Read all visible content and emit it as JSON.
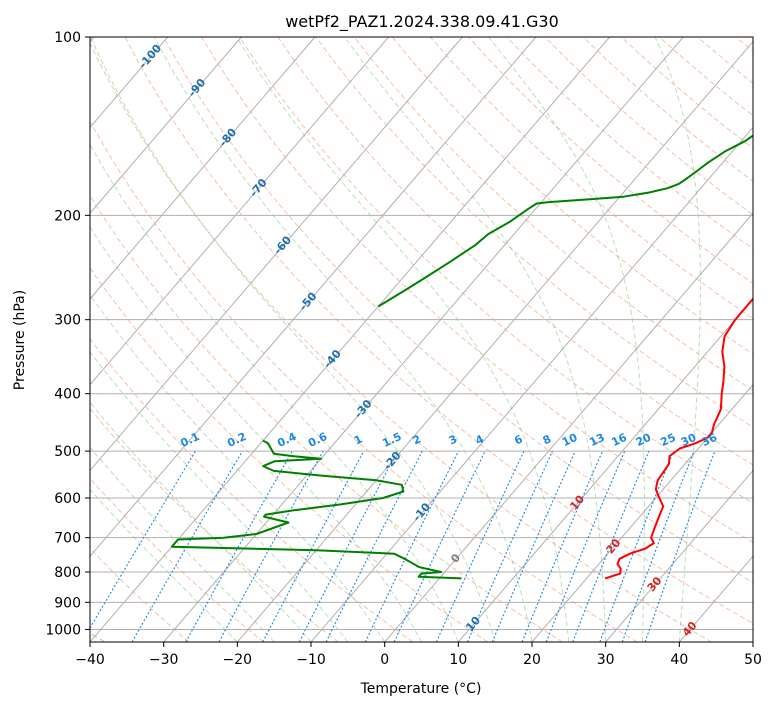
{
  "chart_data": {
    "type": "line",
    "title": "wetPf2_PAZ1.2024.338.09.41.G30",
    "xlabel": "Temperature (°C)",
    "ylabel": "Pressure (hPa)",
    "xlim": [
      -40,
      50
    ],
    "ylim": [
      1050,
      100
    ],
    "y_scale": "log",
    "x_ticks": [
      -40,
      -30,
      -20,
      -10,
      0,
      10,
      20,
      30,
      40,
      50
    ],
    "x_tick_labels": [
      "−40",
      "−30",
      "−20",
      "−10",
      "0",
      "10",
      "20",
      "30",
      "40",
      "50"
    ],
    "y_ticks": [
      100,
      200,
      300,
      400,
      500,
      600,
      700,
      800,
      900,
      1000
    ],
    "y_tick_labels": [
      "100",
      "200",
      "300",
      "400",
      "500",
      "600",
      "700",
      "800",
      "900",
      "1000"
    ],
    "grid": true,
    "colors": {
      "temperature": "#ff0000",
      "dewpoint": "#008000",
      "mixing_ratio": "#1e88e5",
      "isotherm_label": "#1f6fae",
      "theta_e_label": "#d62728"
    },
    "series": [
      {
        "key": "temperature",
        "points": [
          [
            22.5,
            820
          ],
          [
            24.0,
            805
          ],
          [
            23.5,
            790
          ],
          [
            22.5,
            775
          ],
          [
            22.2,
            760
          ],
          [
            23.0,
            745
          ],
          [
            24.5,
            730
          ],
          [
            25.0,
            715
          ],
          [
            24.0,
            700
          ],
          [
            23.5,
            680
          ],
          [
            23.0,
            660
          ],
          [
            22.5,
            640
          ],
          [
            22.0,
            620
          ],
          [
            20.5,
            600
          ],
          [
            19.0,
            580
          ],
          [
            18.2,
            560
          ],
          [
            18.0,
            540
          ],
          [
            17.8,
            525
          ],
          [
            17.0,
            510
          ],
          [
            17.5,
            495
          ],
          [
            19.0,
            485
          ],
          [
            20.0,
            475
          ],
          [
            20.0,
            465
          ],
          [
            19.3,
            450
          ],
          [
            19.0,
            440
          ],
          [
            18.5,
            425
          ],
          [
            17.5,
            410
          ],
          [
            16.8,
            400
          ],
          [
            15.5,
            380
          ],
          [
            14.0,
            360
          ],
          [
            12.0,
            340
          ],
          [
            10.5,
            320
          ],
          [
            10.0,
            300
          ],
          [
            10.0,
            290
          ],
          [
            10.0,
            280
          ],
          [
            10.0,
            265
          ],
          [
            9.5,
            250
          ],
          [
            9.0,
            240
          ],
          [
            8.0,
            225
          ],
          [
            6.0,
            210
          ],
          [
            4.0,
            200
          ],
          [
            3.0,
            190
          ],
          [
            3.0,
            180
          ],
          [
            3.0,
            160
          ],
          [
            3.0,
            150
          ],
          [
            3.0,
            145
          ],
          [
            3.5,
            140
          ],
          [
            4.5,
            132
          ],
          [
            5.0,
            125
          ],
          [
            5.0,
            120
          ],
          [
            4.8,
            115
          ],
          [
            5.0,
            110
          ],
          [
            5.5,
            105
          ],
          [
            6.0,
            100
          ]
        ]
      },
      {
        "key": "dewpoint",
        "points": [
          [
            3.0,
            820
          ],
          [
            -3.0,
            815
          ],
          [
            -3.0,
            805
          ],
          [
            -0.5,
            800
          ],
          [
            -4.0,
            785
          ],
          [
            -7.0,
            760
          ],
          [
            -9.0,
            745
          ],
          [
            -20.0,
            735
          ],
          [
            -40.0,
            725
          ],
          [
            -40.0,
            705
          ],
          [
            -34.0,
            700
          ],
          [
            -30.0,
            690
          ],
          [
            -27.0,
            660
          ],
          [
            -31.0,
            645
          ],
          [
            -31.0,
            640
          ],
          [
            -28.0,
            630
          ],
          [
            -22.0,
            615
          ],
          [
            -17.0,
            600
          ],
          [
            -15.0,
            585
          ],
          [
            -16.0,
            570
          ],
          [
            -20.0,
            560
          ],
          [
            -28.0,
            550
          ],
          [
            -35.0,
            540
          ],
          [
            -37.0,
            530
          ],
          [
            -36.0,
            520
          ],
          [
            -30.0,
            515
          ],
          [
            -34.0,
            510
          ],
          [
            -37.0,
            505
          ],
          [
            -38.0,
            495
          ],
          [
            -39.0,
            485
          ],
          [
            -40.0,
            480
          ],
          [
            -40.0,
            480
          ]
        ]
      },
      {
        "key": "dewpoint-upper",
        "points": [
          [
            -40.0,
            285
          ],
          [
            -38.5,
            270
          ],
          [
            -37.0,
            255
          ],
          [
            -35.5,
            240
          ],
          [
            -34.0,
            225
          ],
          [
            -33.5,
            215
          ],
          [
            -32.0,
            205
          ],
          [
            -31.0,
            195
          ],
          [
            -30.5,
            191
          ],
          [
            -29.0,
            190
          ],
          [
            -24.0,
            188
          ],
          [
            -19.5,
            186
          ],
          [
            -16.5,
            183
          ],
          [
            -14.5,
            180
          ],
          [
            -13.5,
            177
          ],
          [
            -13.0,
            173
          ],
          [
            -12.5,
            168
          ],
          [
            -12.0,
            163
          ],
          [
            -11.0,
            156
          ],
          [
            -9.5,
            150
          ],
          [
            -8.5,
            143
          ],
          [
            -8.5,
            137
          ],
          [
            -9.0,
            132
          ],
          [
            -9.5,
            127
          ],
          [
            -9.0,
            124
          ],
          [
            -7.0,
            120
          ],
          [
            -4.0,
            116
          ],
          [
            -2.5,
            112
          ],
          [
            -1.0,
            105
          ],
          [
            0.0,
            100
          ]
        ]
      }
    ],
    "isotherm_labels": [
      "-100",
      "-90",
      "-80",
      "-70",
      "-60",
      "-50",
      "-40",
      "-30",
      "-20",
      "-10",
      "0",
      "10",
      "20",
      "30",
      "40"
    ],
    "mixing_ratio_labels": [
      "0.1",
      "0.2",
      "0.4",
      "0.6",
      "1",
      "1.5",
      "2",
      "3",
      "4",
      "6",
      "8",
      "10",
      "13",
      "16",
      "20",
      "25",
      "30",
      "36"
    ]
  }
}
